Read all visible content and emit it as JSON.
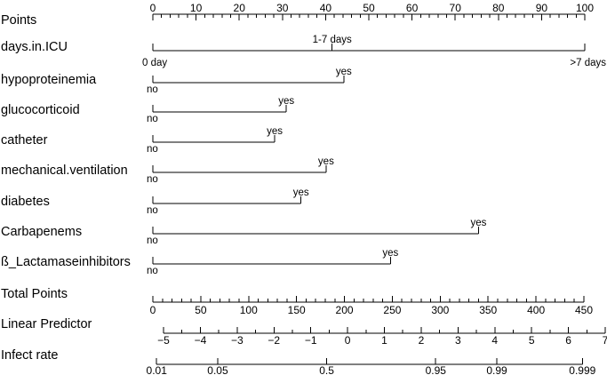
{
  "chart_data": {
    "type": "nomogram",
    "title": "",
    "points_scale": {
      "label": "Points",
      "min": 0,
      "max": 100,
      "major_ticks": [
        0,
        10,
        20,
        30,
        40,
        50,
        60,
        70,
        80,
        90,
        100
      ],
      "minor_step": 2
    },
    "predictors": [
      {
        "label": "days.in.ICU",
        "points": [
          {
            "level": "0 day",
            "points": 0
          },
          {
            "level": "1-7 days",
            "points": 41.5
          },
          {
            "level": ">7 days",
            "points": 100
          }
        ]
      },
      {
        "label": "hypoproteinemia",
        "points": [
          {
            "level": "no",
            "points": 0
          },
          {
            "level": "yes",
            "points": 44.2
          }
        ]
      },
      {
        "label": "glucocorticoid",
        "points": [
          {
            "level": "no",
            "points": 0
          },
          {
            "level": "yes",
            "points": 30.9
          }
        ]
      },
      {
        "label": "catheter",
        "points": [
          {
            "level": "no",
            "points": 0
          },
          {
            "level": "yes",
            "points": 28.2
          }
        ]
      },
      {
        "label": "mechanical.ventilation",
        "points": [
          {
            "level": "no",
            "points": 0
          },
          {
            "level": "yes",
            "points": 40.1
          }
        ]
      },
      {
        "label": "diabetes",
        "points": [
          {
            "level": "no",
            "points": 0
          },
          {
            "level": "yes",
            "points": 34.3
          }
        ]
      },
      {
        "label": "Carbapenems",
        "points": [
          {
            "level": "no",
            "points": 0
          },
          {
            "level": "yes",
            "points": 75.4
          }
        ]
      },
      {
        "label": "ß_Lactamaseinhibitors",
        "points": [
          {
            "level": "no",
            "points": 0
          },
          {
            "level": "yes",
            "points": 55.0
          }
        ]
      }
    ],
    "total_points": {
      "label": "Total Points",
      "min": 0,
      "max": 450,
      "major_ticks": [
        0,
        50,
        100,
        150,
        200,
        250,
        300,
        350,
        400,
        450
      ],
      "minor_step": 10
    },
    "linear_predictor": {
      "label": "Linear Predictor",
      "min": -5,
      "max": 7,
      "total_points_at_min": 0,
      "total_points_at_max": 450,
      "major_ticks": [
        -5,
        -4,
        -3,
        -2,
        -1,
        0,
        1,
        2,
        3,
        4,
        5,
        6,
        7
      ],
      "tick_labels": [
        "−5",
        "−4",
        "−3",
        "−2",
        "−1",
        "0",
        "1",
        "2",
        "3",
        "4",
        "5",
        "6",
        "7"
      ],
      "minor_step": 0.5
    },
    "infect_rate": {
      "label": "Infect rate",
      "ticks": [
        0.01,
        0.05,
        0.5,
        0.95,
        0.99,
        0.999
      ],
      "tick_labels": [
        "0.01",
        "0.05",
        "0.5",
        "0.95",
        "0.99",
        "0.999"
      ]
    }
  }
}
